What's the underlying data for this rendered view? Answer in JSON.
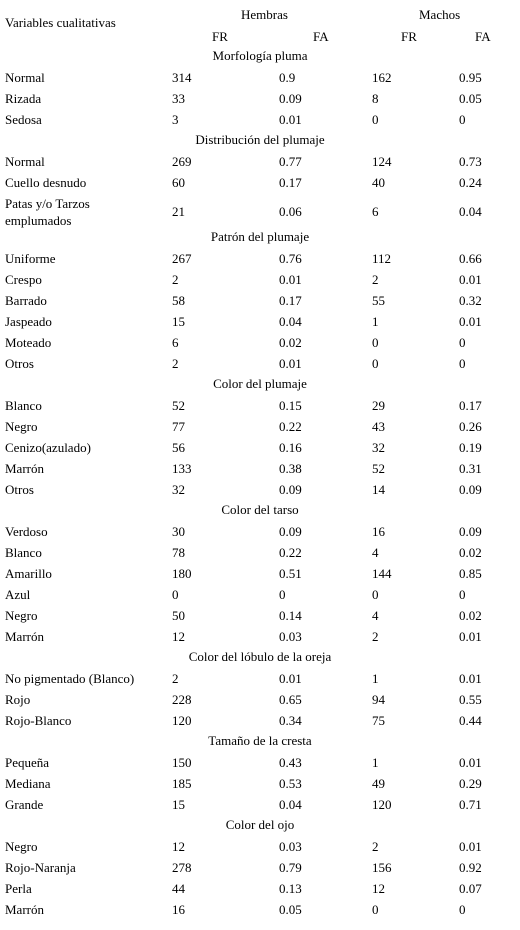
{
  "header": {
    "variables": "Variables cualitativas",
    "hembras": "Hembras",
    "machos": "Machos",
    "fr": "FR",
    "fa": "FA"
  },
  "sections": [
    {
      "title": "Morfología pluma",
      "rows": [
        {
          "label": "Normal",
          "h_fr": "314",
          "h_fa": "0.9",
          "m_fr": "162",
          "m_fa": "0.95"
        },
        {
          "label": "Rizada",
          "h_fr": "33",
          "h_fa": "0.09",
          "m_fr": "8",
          "m_fa": "0.05"
        },
        {
          "label": "Sedosa",
          "h_fr": "3",
          "h_fa": "0.01",
          "m_fr": "0",
          "m_fa": "0"
        }
      ]
    },
    {
      "title": "Distribución del plumaje",
      "rows": [
        {
          "label": "Normal",
          "h_fr": "269",
          "h_fa": "0.77",
          "m_fr": "124",
          "m_fa": "0.73"
        },
        {
          "label": "Cuello desnudo",
          "h_fr": "60",
          "h_fa": "0.17",
          "m_fr": "40",
          "m_fa": "0.24"
        },
        {
          "label": "Patas y/o Tarzos",
          "label2": "emplumados",
          "h_fr": "21",
          "h_fa": "0.06",
          "m_fr": "6",
          "m_fa": "0.04"
        }
      ]
    },
    {
      "title": "Patrón del plumaje",
      "rows": [
        {
          "label": "Uniforme",
          "h_fr": "267",
          "h_fa": "0.76",
          "m_fr": "112",
          "m_fa": "0.66"
        },
        {
          "label": "Crespo",
          "h_fr": "2",
          "h_fa": "0.01",
          "m_fr": "2",
          "m_fa": "0.01"
        },
        {
          "label": "Barrado",
          "h_fr": "58",
          "h_fa": "0.17",
          "m_fr": "55",
          "m_fa": "0.32"
        },
        {
          "label": "Jaspeado",
          "h_fr": "15",
          "h_fa": "0.04",
          "m_fr": "1",
          "m_fa": "0.01"
        },
        {
          "label": "Moteado",
          "h_fr": "6",
          "h_fa": "0.02",
          "m_fr": "0",
          "m_fa": "0"
        },
        {
          "label": "Otros",
          "h_fr": "2",
          "h_fa": "0.01",
          "m_fr": "0",
          "m_fa": "0"
        }
      ]
    },
    {
      "title": "Color del plumaje",
      "rows": [
        {
          "label": "Blanco",
          "h_fr": "52",
          "h_fa": "0.15",
          "m_fr": "29",
          "m_fa": "0.17"
        },
        {
          "label": "Negro",
          "h_fr": "77",
          "h_fa": "0.22",
          "m_fr": "43",
          "m_fa": "0.26"
        },
        {
          "label": "Cenizo(azulado)",
          "h_fr": "56",
          "h_fa": "0.16",
          "m_fr": "32",
          "m_fa": "0.19"
        },
        {
          "label": "Marrón",
          "h_fr": "133",
          "h_fa": "0.38",
          "m_fr": "52",
          "m_fa": "0.31"
        },
        {
          "label": "Otros",
          "h_fr": "32",
          "h_fa": "0.09",
          "m_fr": "14",
          "m_fa": "0.09"
        }
      ]
    },
    {
      "title": "Color del tarso",
      "rows": [
        {
          "label": "Verdoso",
          "h_fr": "30",
          "h_fa": "0.09",
          "m_fr": "16",
          "m_fa": "0.09"
        },
        {
          "label": "Blanco",
          "h_fr": "78",
          "h_fa": "0.22",
          "m_fr": "4",
          "m_fa": "0.02"
        },
        {
          "label": "Amarillo",
          "h_fr": "180",
          "h_fa": "0.51",
          "m_fr": "144",
          "m_fa": "0.85"
        },
        {
          "label": "Azul",
          "h_fr": "0",
          "h_fa": "0",
          "m_fr": "0",
          "m_fa": "0"
        },
        {
          "label": "Negro",
          "h_fr": "50",
          "h_fa": "0.14",
          "m_fr": "4",
          "m_fa": "0.02"
        },
        {
          "label": "Marrón",
          "h_fr": "12",
          "h_fa": "0.03",
          "m_fr": "2",
          "m_fa": "0.01"
        }
      ]
    },
    {
      "title": "Color del lóbulo de la oreja",
      "rows": [
        {
          "label": "No pigmentado (Blanco)",
          "h_fr": "2",
          "h_fa": "0.01",
          "m_fr": "1",
          "m_fa": "0.01"
        },
        {
          "label": "Rojo",
          "h_fr": "228",
          "h_fa": "0.65",
          "m_fr": "94",
          "m_fa": "0.55"
        },
        {
          "label": "Rojo-Blanco",
          "h_fr": "120",
          "h_fa": "0.34",
          "m_fr": "75",
          "m_fa": "0.44"
        }
      ]
    },
    {
      "title": "Tamaño de la cresta",
      "rows": [
        {
          "label": "Pequeña",
          "h_fr": "150",
          "h_fa": "0.43",
          "m_fr": "1",
          "m_fa": "0.01"
        },
        {
          "label": "Mediana",
          "h_fr": "185",
          "h_fa": "0.53",
          "m_fr": "49",
          "m_fa": "0.29"
        },
        {
          "label": "Grande",
          "h_fr": "15",
          "h_fa": "0.04",
          "m_fr": "120",
          "m_fa": "0.71"
        }
      ]
    },
    {
      "title": "Color del ojo",
      "rows": [
        {
          "label": "Negro",
          "h_fr": "12",
          "h_fa": "0.03",
          "m_fr": "2",
          "m_fa": "0.01"
        },
        {
          "label": "Rojo-Naranja",
          "h_fr": "278",
          "h_fa": "0.79",
          "m_fr": "156",
          "m_fa": "0.92"
        },
        {
          "label": "Perla",
          "h_fr": "44",
          "h_fa": "0.13",
          "m_fr": "12",
          "m_fa": "0.07"
        },
        {
          "label": "Marrón",
          "h_fr": "16",
          "h_fa": "0.05",
          "m_fr": "0",
          "m_fa": "0"
        }
      ]
    }
  ]
}
